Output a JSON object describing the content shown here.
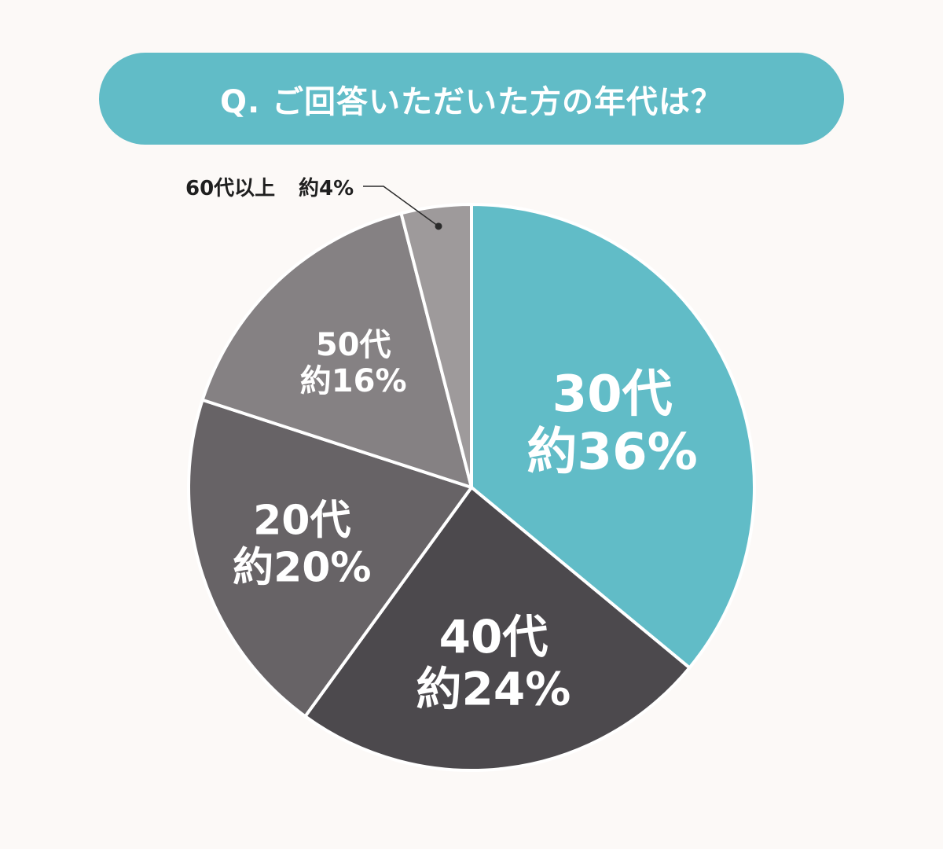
{
  "chart_data": {
    "type": "pie",
    "title": "Q. ご回答いただいた方の年代は？",
    "slices": [
      {
        "category": "30代",
        "label": "約36%",
        "value": 36,
        "color": "#61bcc7"
      },
      {
        "category": "40代",
        "label": "約24%",
        "value": 24,
        "color": "#4c494d"
      },
      {
        "category": "20代",
        "label": "約20%",
        "value": 20,
        "color": "#676366"
      },
      {
        "category": "50代",
        "label": "約16%",
        "value": 16,
        "color": "#858183"
      },
      {
        "category": "60代以上",
        "label": "約4%",
        "value": 4,
        "color": "#9e9a9b",
        "callout": true
      }
    ],
    "start": "top",
    "direction": "clockwise"
  }
}
